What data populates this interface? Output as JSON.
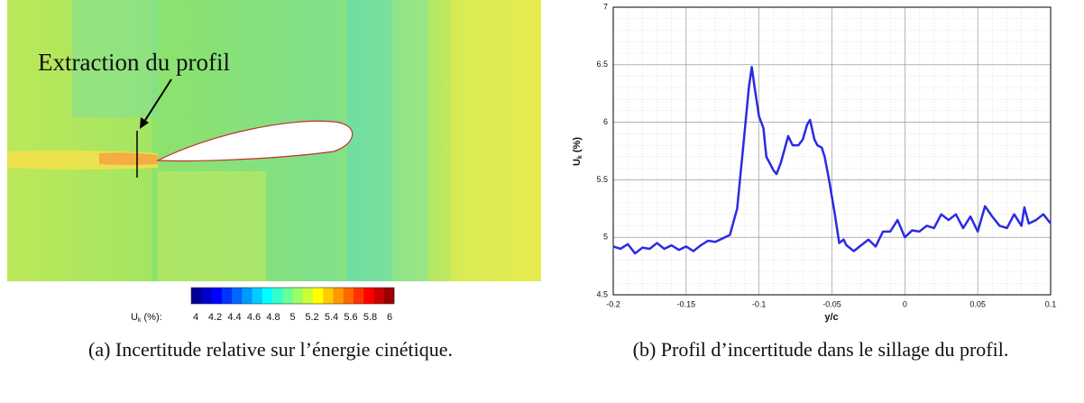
{
  "chart_data": [
    {
      "type": "contour",
      "annotation": "Extraction du profil",
      "colorbar_label": [
        "U",
        "k",
        " (%):"
      ],
      "clim": [
        4,
        6
      ],
      "colorbar_ticks": [
        4,
        4.2,
        4.4,
        4.6,
        4.8,
        5,
        5.2,
        5.4,
        5.6,
        5.8,
        6
      ],
      "caption": "(a) Incertitude relative sur l’énergie cinétique."
    },
    {
      "type": "line",
      "y_label": [
        "U",
        "k",
        " (%)"
      ],
      "x_label": "y/c",
      "color": "#2a2ae6",
      "x": [
        -0.2,
        -0.195,
        -0.19,
        -0.185,
        -0.18,
        -0.175,
        -0.17,
        -0.165,
        -0.16,
        -0.155,
        -0.15,
        -0.145,
        -0.14,
        -0.135,
        -0.13,
        -0.125,
        -0.12,
        -0.115,
        -0.11,
        -0.107,
        -0.105,
        -0.103,
        -0.1,
        -0.097,
        -0.095,
        -0.09,
        -0.088,
        -0.085,
        -0.08,
        -0.077,
        -0.073,
        -0.07,
        -0.067,
        -0.065,
        -0.062,
        -0.06,
        -0.057,
        -0.055,
        -0.052,
        -0.05,
        -0.048,
        -0.045,
        -0.042,
        -0.04,
        -0.035,
        -0.03,
        -0.025,
        -0.02,
        -0.015,
        -0.01,
        -0.005,
        0,
        0.005,
        0.01,
        0.015,
        0.02,
        0.025,
        0.03,
        0.035,
        0.04,
        0.045,
        0.05,
        0.055,
        0.06,
        0.065,
        0.07,
        0.075,
        0.08,
        0.082,
        0.085,
        0.09,
        0.095,
        0.1
      ],
      "values": [
        4.92,
        4.9,
        4.94,
        4.86,
        4.91,
        4.9,
        4.95,
        4.9,
        4.93,
        4.89,
        4.92,
        4.88,
        4.93,
        4.97,
        4.96,
        4.99,
        5.02,
        5.25,
        5.9,
        6.3,
        6.48,
        6.3,
        6.05,
        5.95,
        5.7,
        5.58,
        5.55,
        5.65,
        5.88,
        5.8,
        5.8,
        5.85,
        5.98,
        6.02,
        5.85,
        5.8,
        5.78,
        5.7,
        5.5,
        5.35,
        5.2,
        4.95,
        4.98,
        4.93,
        4.88,
        4.93,
        4.98,
        4.92,
        5.05,
        5.05,
        5.15,
        5.0,
        5.06,
        5.05,
        5.1,
        5.08,
        5.2,
        5.15,
        5.2,
        5.08,
        5.18,
        5.05,
        5.27,
        5.18,
        5.1,
        5.08,
        5.2,
        5.1,
        5.26,
        5.12,
        5.15,
        5.2,
        5.12
      ],
      "xlim": [
        -0.2,
        0.1
      ],
      "xticks": [
        -0.2,
        -0.15,
        -0.1,
        -0.05,
        0,
        0.05,
        0.1
      ],
      "ylim": [
        4.5,
        7
      ],
      "yticks": [
        4.5,
        5,
        5.5,
        6,
        6.5,
        7
      ],
      "grid": true,
      "minor_grid": true,
      "caption": "(b) Profil d’incertitude dans le sillage du profil."
    }
  ]
}
